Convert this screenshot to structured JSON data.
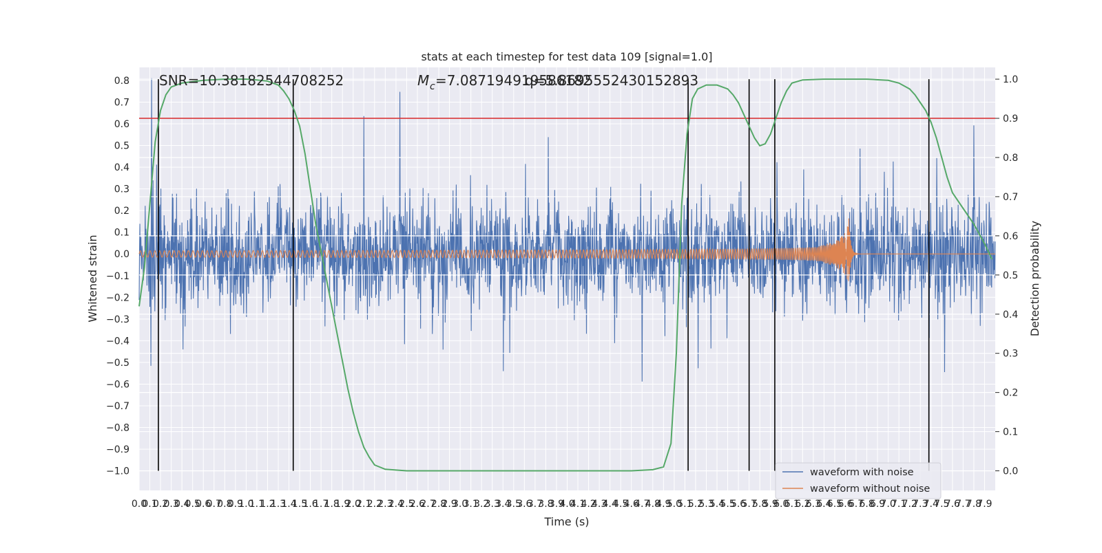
{
  "chart_data": {
    "type": "line",
    "title": "stats at each timestep for test data 109 [signal=1.0]",
    "xlabel": "Time (s)",
    "ylabel": "Whitened strain",
    "y2label": "Detection probability",
    "xlim": [
      0.0,
      8.0
    ],
    "ylim": [
      -1.09,
      0.86
    ],
    "y2lim": [
      -0.05,
      1.03
    ],
    "x_ticks": [
      "0.0",
      "0.1",
      "0.2",
      "0.3",
      "0.4",
      "0.5",
      "0.6",
      "0.7",
      "0.8",
      "0.9",
      "1.0",
      "1.1",
      "1.2",
      "1.3",
      "1.4",
      "1.5",
      "1.6",
      "1.7",
      "1.8",
      "1.9",
      "2.0",
      "2.1",
      "2.2",
      "2.3",
      "2.4",
      "2.5",
      "2.6",
      "2.7",
      "2.8",
      "2.9",
      "3.0",
      "3.1",
      "3.2",
      "3.3",
      "3.4",
      "3.5",
      "3.6",
      "3.7",
      "3.8",
      "3.9",
      "4.0",
      "4.1",
      "4.2",
      "4.3",
      "4.4",
      "4.5",
      "4.6",
      "4.7",
      "4.8",
      "4.9",
      "5.0",
      "5.1",
      "5.2",
      "5.3",
      "5.4",
      "5.5",
      "5.6",
      "5.7",
      "5.8",
      "5.9",
      "6.0",
      "6.1",
      "6.2",
      "6.3",
      "6.4",
      "6.5",
      "6.6",
      "6.7",
      "6.8",
      "6.9",
      "7.0",
      "7.1",
      "7.2",
      "7.3",
      "7.4",
      "7.5",
      "7.6",
      "7.7",
      "7.8",
      "7.9"
    ],
    "y_ticks": [
      "0.8",
      "0.7",
      "0.6",
      "0.5",
      "0.4",
      "0.3",
      "0.2",
      "0.1",
      "0.0",
      "−0.1",
      "−0.2",
      "−0.3",
      "−0.4",
      "−0.5",
      "−0.6",
      "−0.7",
      "−0.8",
      "−0.9",
      "−1.0"
    ],
    "y2_ticks": [
      "1.0",
      "0.9",
      "0.8",
      "0.7",
      "0.6",
      "0.5",
      "0.4",
      "0.3",
      "0.2",
      "0.1",
      "0.0"
    ],
    "annotations": {
      "snr": "SNR=10.38182544708252",
      "mc": "=7.087194919586182",
      "mc_symbol": "M",
      "mc_subscript": "c",
      "q": "q=5.8695552430152893"
    },
    "threshold": {
      "y2": 0.9,
      "color": "#d62728"
    },
    "vertical_markers_x": [
      0.18,
      1.44,
      5.13,
      5.7,
      5.94,
      7.38
    ],
    "probability_curve": {
      "color": "#55a868",
      "points": [
        [
          0.0,
          0.42
        ],
        [
          0.05,
          0.52
        ],
        [
          0.1,
          0.68
        ],
        [
          0.15,
          0.84
        ],
        [
          0.2,
          0.92
        ],
        [
          0.25,
          0.96
        ],
        [
          0.3,
          0.98
        ],
        [
          0.4,
          0.99
        ],
        [
          0.6,
          0.997
        ],
        [
          0.8,
          1.0
        ],
        [
          1.0,
          1.0
        ],
        [
          1.1,
          0.998
        ],
        [
          1.2,
          0.995
        ],
        [
          1.3,
          0.985
        ],
        [
          1.35,
          0.97
        ],
        [
          1.4,
          0.95
        ],
        [
          1.45,
          0.92
        ],
        [
          1.5,
          0.88
        ],
        [
          1.55,
          0.81
        ],
        [
          1.6,
          0.72
        ],
        [
          1.65,
          0.63
        ],
        [
          1.7,
          0.56
        ],
        [
          1.75,
          0.49
        ],
        [
          1.8,
          0.42
        ],
        [
          1.85,
          0.35
        ],
        [
          1.9,
          0.28
        ],
        [
          1.95,
          0.21
        ],
        [
          2.0,
          0.15
        ],
        [
          2.05,
          0.1
        ],
        [
          2.1,
          0.06
        ],
        [
          2.15,
          0.035
        ],
        [
          2.2,
          0.015
        ],
        [
          2.3,
          0.004
        ],
        [
          2.5,
          0.0
        ],
        [
          3.0,
          0.0
        ],
        [
          4.0,
          0.0
        ],
        [
          4.6,
          0.0
        ],
        [
          4.8,
          0.003
        ],
        [
          4.9,
          0.01
        ],
        [
          4.97,
          0.07
        ],
        [
          5.02,
          0.3
        ],
        [
          5.07,
          0.68
        ],
        [
          5.12,
          0.86
        ],
        [
          5.17,
          0.95
        ],
        [
          5.22,
          0.975
        ],
        [
          5.3,
          0.985
        ],
        [
          5.4,
          0.985
        ],
        [
          5.5,
          0.975
        ],
        [
          5.55,
          0.96
        ],
        [
          5.6,
          0.94
        ],
        [
          5.65,
          0.91
        ],
        [
          5.7,
          0.88
        ],
        [
          5.75,
          0.85
        ],
        [
          5.8,
          0.83
        ],
        [
          5.85,
          0.835
        ],
        [
          5.9,
          0.86
        ],
        [
          5.95,
          0.9
        ],
        [
          6.0,
          0.94
        ],
        [
          6.05,
          0.97
        ],
        [
          6.1,
          0.99
        ],
        [
          6.2,
          0.998
        ],
        [
          6.4,
          1.0
        ],
        [
          6.8,
          1.0
        ],
        [
          7.0,
          0.997
        ],
        [
          7.1,
          0.99
        ],
        [
          7.2,
          0.975
        ],
        [
          7.25,
          0.96
        ],
        [
          7.3,
          0.94
        ],
        [
          7.35,
          0.92
        ],
        [
          7.4,
          0.89
        ],
        [
          7.45,
          0.85
        ],
        [
          7.5,
          0.8
        ],
        [
          7.55,
          0.75
        ],
        [
          7.6,
          0.71
        ],
        [
          7.7,
          0.67
        ],
        [
          7.8,
          0.63
        ],
        [
          7.9,
          0.58
        ],
        [
          7.97,
          0.54
        ]
      ]
    },
    "series": [
      {
        "name": "waveform with noise",
        "color": "#4c72b0",
        "noise_amplitude": 0.5,
        "peak_amplitude": 0.83
      },
      {
        "name": "waveform without noise",
        "color": "#dd8452",
        "start_amplitude": 0.015,
        "peak_amplitude": 0.22,
        "merger_x": 6.63
      }
    ],
    "legend": "bottom-right",
    "grid": true,
    "background": "#eaeaf2"
  }
}
